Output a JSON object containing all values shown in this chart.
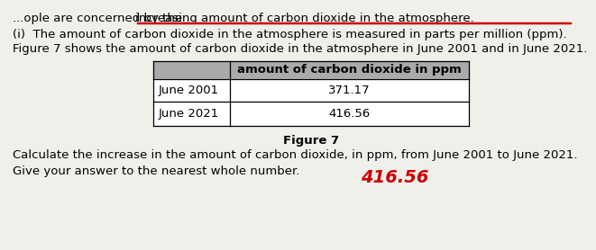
{
  "bg_color": "#f0f0eb",
  "top_line_prefix": "...ople are concerned by the ",
  "top_line_underlined": "increasing amount of carbon dioxide in the atmosphere.",
  "underline_color": "#cc0000",
  "line1": "(i)  The amount of carbon dioxide in the atmosphere is measured in parts per million (ppm).",
  "line2": "Figure 7 shows the amount of carbon dioxide in the atmosphere in June 2001 and in June 2021.",
  "table_header": "amount of carbon dioxide in ppm",
  "table_header_bg": "#aaaaaa",
  "row1_label": "June 2001",
  "row1_value": "371.17",
  "row2_label": "June 2021",
  "row2_value": "416.56",
  "figure_caption": "Figure 7",
  "calc_line": "Calculate the increase in the amount of carbon dioxide, in ppm, from June 2001 to June 2021.",
  "answer_prompt": "Give your answer to the nearest whole number.",
  "answer_text": "416.56",
  "answer_color": "#cc0000",
  "font_size": 9.5
}
